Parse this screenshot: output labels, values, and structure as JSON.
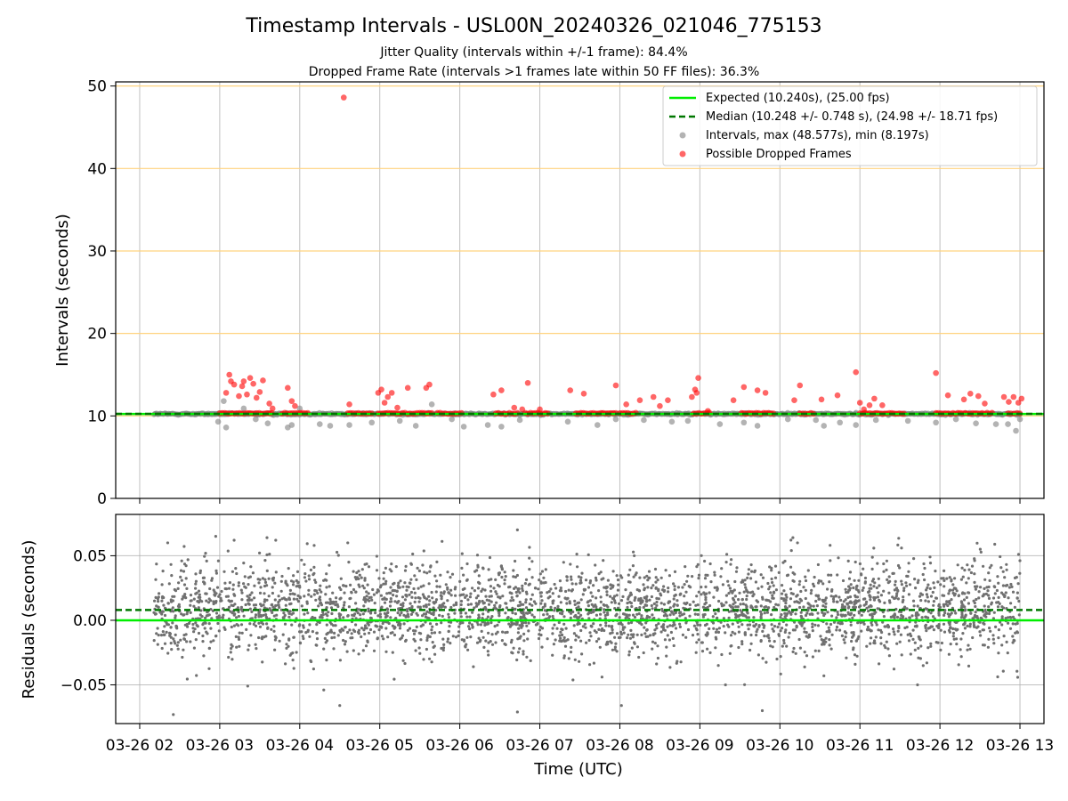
{
  "title": "Timestamp Intervals - USL00N_20240326_021046_775153",
  "subtitle_1": "Jitter Quality (intervals within +/-1 frame): 84.4%",
  "subtitle_2": "Dropped Frame Rate (intervals >1 frames late within 50 FF files): 36.3%",
  "chart_data": [
    {
      "type": "scatter",
      "panel": "intervals",
      "ylabel": "Intervals (seconds)",
      "ylim": [
        0,
        50.5
      ],
      "yticks": [
        "0",
        "10",
        "20",
        "30",
        "40",
        "50"
      ],
      "grid": "x-major (gray), y-major (orange)",
      "legend_position": "upper-right",
      "legend": [
        "Expected (10.240s), (25.00 fps)",
        "Median (10.248 +/- 0.748 s), (24.98 +/- 18.71 fps)",
        "Intervals, max (48.577s), min (8.197s)",
        "Possible Dropped Frames"
      ],
      "colors": {
        "expected": "#00ee00",
        "median": "#007700",
        "intervals": "#808080",
        "dropped": "#ff0000",
        "y_grid": "#ffd37f"
      },
      "expected_value": 10.24,
      "median_value": 10.248,
      "max_value": 48.577,
      "min_value": 8.197,
      "x_range_hours": [
        1.7,
        13.3
      ],
      "data_start_hour": 2.178,
      "data_end_hour": 13.0,
      "dropped_frames": [
        [
          3.08,
          12.8
        ],
        [
          3.12,
          15.0
        ],
        [
          3.14,
          14.2
        ],
        [
          3.18,
          13.8
        ],
        [
          3.24,
          12.4
        ],
        [
          3.28,
          13.6
        ],
        [
          3.3,
          14.2
        ],
        [
          3.34,
          12.6
        ],
        [
          3.38,
          14.6
        ],
        [
          3.42,
          13.9
        ],
        [
          3.46,
          12.2
        ],
        [
          3.5,
          12.9
        ],
        [
          3.54,
          14.3
        ],
        [
          3.62,
          11.5
        ],
        [
          3.66,
          10.9
        ],
        [
          3.85,
          13.4
        ],
        [
          3.9,
          11.8
        ],
        [
          3.94,
          11.2
        ],
        [
          4.55,
          48.6
        ],
        [
          4.62,
          11.4
        ],
        [
          4.98,
          12.8
        ],
        [
          5.02,
          13.2
        ],
        [
          5.06,
          11.6
        ],
        [
          5.1,
          12.3
        ],
        [
          5.15,
          12.8
        ],
        [
          5.22,
          11.0
        ],
        [
          5.35,
          13.4
        ],
        [
          5.58,
          13.4
        ],
        [
          5.62,
          13.8
        ],
        [
          6.42,
          12.6
        ],
        [
          6.52,
          13.1
        ],
        [
          6.68,
          11.0
        ],
        [
          6.78,
          10.8
        ],
        [
          6.85,
          14.0
        ],
        [
          7.0,
          10.8
        ],
        [
          7.38,
          13.1
        ],
        [
          7.55,
          12.7
        ],
        [
          7.95,
          13.7
        ],
        [
          8.08,
          11.4
        ],
        [
          8.25,
          11.9
        ],
        [
          8.42,
          12.3
        ],
        [
          8.5,
          11.2
        ],
        [
          8.6,
          11.9
        ],
        [
          8.9,
          12.3
        ],
        [
          8.94,
          13.2
        ],
        [
          8.98,
          14.6
        ],
        [
          8.96,
          12.8
        ],
        [
          9.1,
          10.6
        ],
        [
          9.42,
          11.9
        ],
        [
          9.55,
          13.5
        ],
        [
          9.72,
          13.1
        ],
        [
          9.82,
          12.8
        ],
        [
          10.18,
          11.9
        ],
        [
          10.25,
          13.7
        ],
        [
          10.52,
          12.0
        ],
        [
          10.72,
          12.5
        ],
        [
          10.95,
          15.3
        ],
        [
          11.0,
          11.6
        ],
        [
          11.05,
          10.8
        ],
        [
          11.12,
          11.3
        ],
        [
          11.18,
          12.1
        ],
        [
          11.28,
          11.3
        ],
        [
          11.95,
          15.2
        ],
        [
          12.1,
          12.5
        ],
        [
          12.3,
          12.0
        ],
        [
          12.38,
          12.7
        ],
        [
          12.48,
          12.4
        ],
        [
          12.56,
          11.5
        ],
        [
          12.8,
          12.3
        ],
        [
          12.86,
          11.7
        ],
        [
          12.92,
          12.3
        ],
        [
          12.98,
          11.6
        ],
        [
          13.02,
          12.1
        ]
      ],
      "dropped_clusters": [
        [
          3.0,
          3.65
        ],
        [
          3.78,
          4.1
        ],
        [
          4.6,
          4.9
        ],
        [
          4.98,
          5.65
        ],
        [
          5.72,
          6.02
        ],
        [
          6.45,
          6.72
        ],
        [
          6.82,
          7.1
        ],
        [
          7.45,
          7.95
        ],
        [
          8.0,
          8.2
        ],
        [
          8.92,
          9.12
        ],
        [
          9.52,
          9.92
        ],
        [
          10.25,
          10.42
        ],
        [
          11.0,
          11.55
        ],
        [
          11.95,
          12.65
        ],
        [
          12.85,
          13.0
        ]
      ],
      "interval_outliers": [
        [
          2.98,
          9.3
        ],
        [
          3.05,
          11.8
        ],
        [
          3.08,
          8.6
        ],
        [
          3.3,
          10.9
        ],
        [
          3.45,
          9.6
        ],
        [
          3.6,
          9.1
        ],
        [
          3.85,
          8.6
        ],
        [
          3.9,
          8.9
        ],
        [
          4.0,
          10.9
        ],
        [
          4.25,
          9.0
        ],
        [
          4.38,
          8.8
        ],
        [
          4.62,
          8.9
        ],
        [
          4.9,
          9.2
        ],
        [
          5.25,
          9.4
        ],
        [
          5.45,
          8.8
        ],
        [
          5.65,
          11.4
        ],
        [
          5.9,
          9.6
        ],
        [
          6.05,
          8.7
        ],
        [
          6.35,
          8.9
        ],
        [
          6.52,
          8.7
        ],
        [
          6.75,
          9.5
        ],
        [
          7.35,
          9.3
        ],
        [
          7.72,
          8.9
        ],
        [
          7.95,
          9.6
        ],
        [
          8.3,
          9.5
        ],
        [
          8.65,
          9.3
        ],
        [
          8.85,
          9.4
        ],
        [
          9.25,
          9.0
        ],
        [
          9.55,
          9.2
        ],
        [
          9.72,
          8.8
        ],
        [
          10.1,
          9.6
        ],
        [
          10.45,
          9.5
        ],
        [
          10.55,
          8.8
        ],
        [
          10.75,
          9.2
        ],
        [
          10.95,
          8.9
        ],
        [
          11.2,
          9.5
        ],
        [
          11.6,
          9.4
        ],
        [
          11.95,
          9.2
        ],
        [
          12.2,
          9.6
        ],
        [
          12.45,
          9.1
        ],
        [
          12.7,
          9.0
        ],
        [
          12.85,
          9.0
        ],
        [
          12.95,
          8.2
        ],
        [
          13.0,
          9.6
        ]
      ]
    },
    {
      "type": "scatter",
      "panel": "residuals",
      "xlabel": "Time (UTC)",
      "ylabel": "Residuals (seconds)",
      "ylim": [
        -0.08,
        0.082
      ],
      "yticks": [
        "−0.05",
        "0.00",
        "0.05"
      ],
      "xticks": [
        "03-26 02",
        "03-26 03",
        "03-26 04",
        "03-26 05",
        "03-26 06",
        "03-26 07",
        "03-26 08",
        "03-26 09",
        "03-26 10",
        "03-26 11",
        "03-26 12",
        "03-26 13"
      ],
      "xtick_hours": [
        2,
        3,
        4,
        5,
        6,
        7,
        8,
        9,
        10,
        11,
        12,
        13
      ],
      "expected_residual": 0.0,
      "median_residual": 0.008,
      "residual_outliers": [
        [
          2.42,
          -0.073
        ],
        [
          3.18,
          0.062
        ],
        [
          3.35,
          -0.051
        ],
        [
          4.3,
          -0.054
        ],
        [
          4.5,
          -0.066
        ],
        [
          6.72,
          0.07
        ],
        [
          6.72,
          -0.071
        ],
        [
          8.02,
          -0.066
        ],
        [
          8.18,
          0.05
        ],
        [
          9.32,
          -0.05
        ],
        [
          9.78,
          -0.07
        ],
        [
          10.22,
          0.06
        ],
        [
          10.55,
          -0.043
        ],
        [
          11.52,
          0.056
        ],
        [
          11.72,
          -0.05
        ],
        [
          2.35,
          0.06
        ],
        [
          2.95,
          0.065
        ],
        [
          3.7,
          0.062
        ],
        [
          4.18,
          0.058
        ],
        [
          4.6,
          0.06
        ]
      ]
    }
  ]
}
